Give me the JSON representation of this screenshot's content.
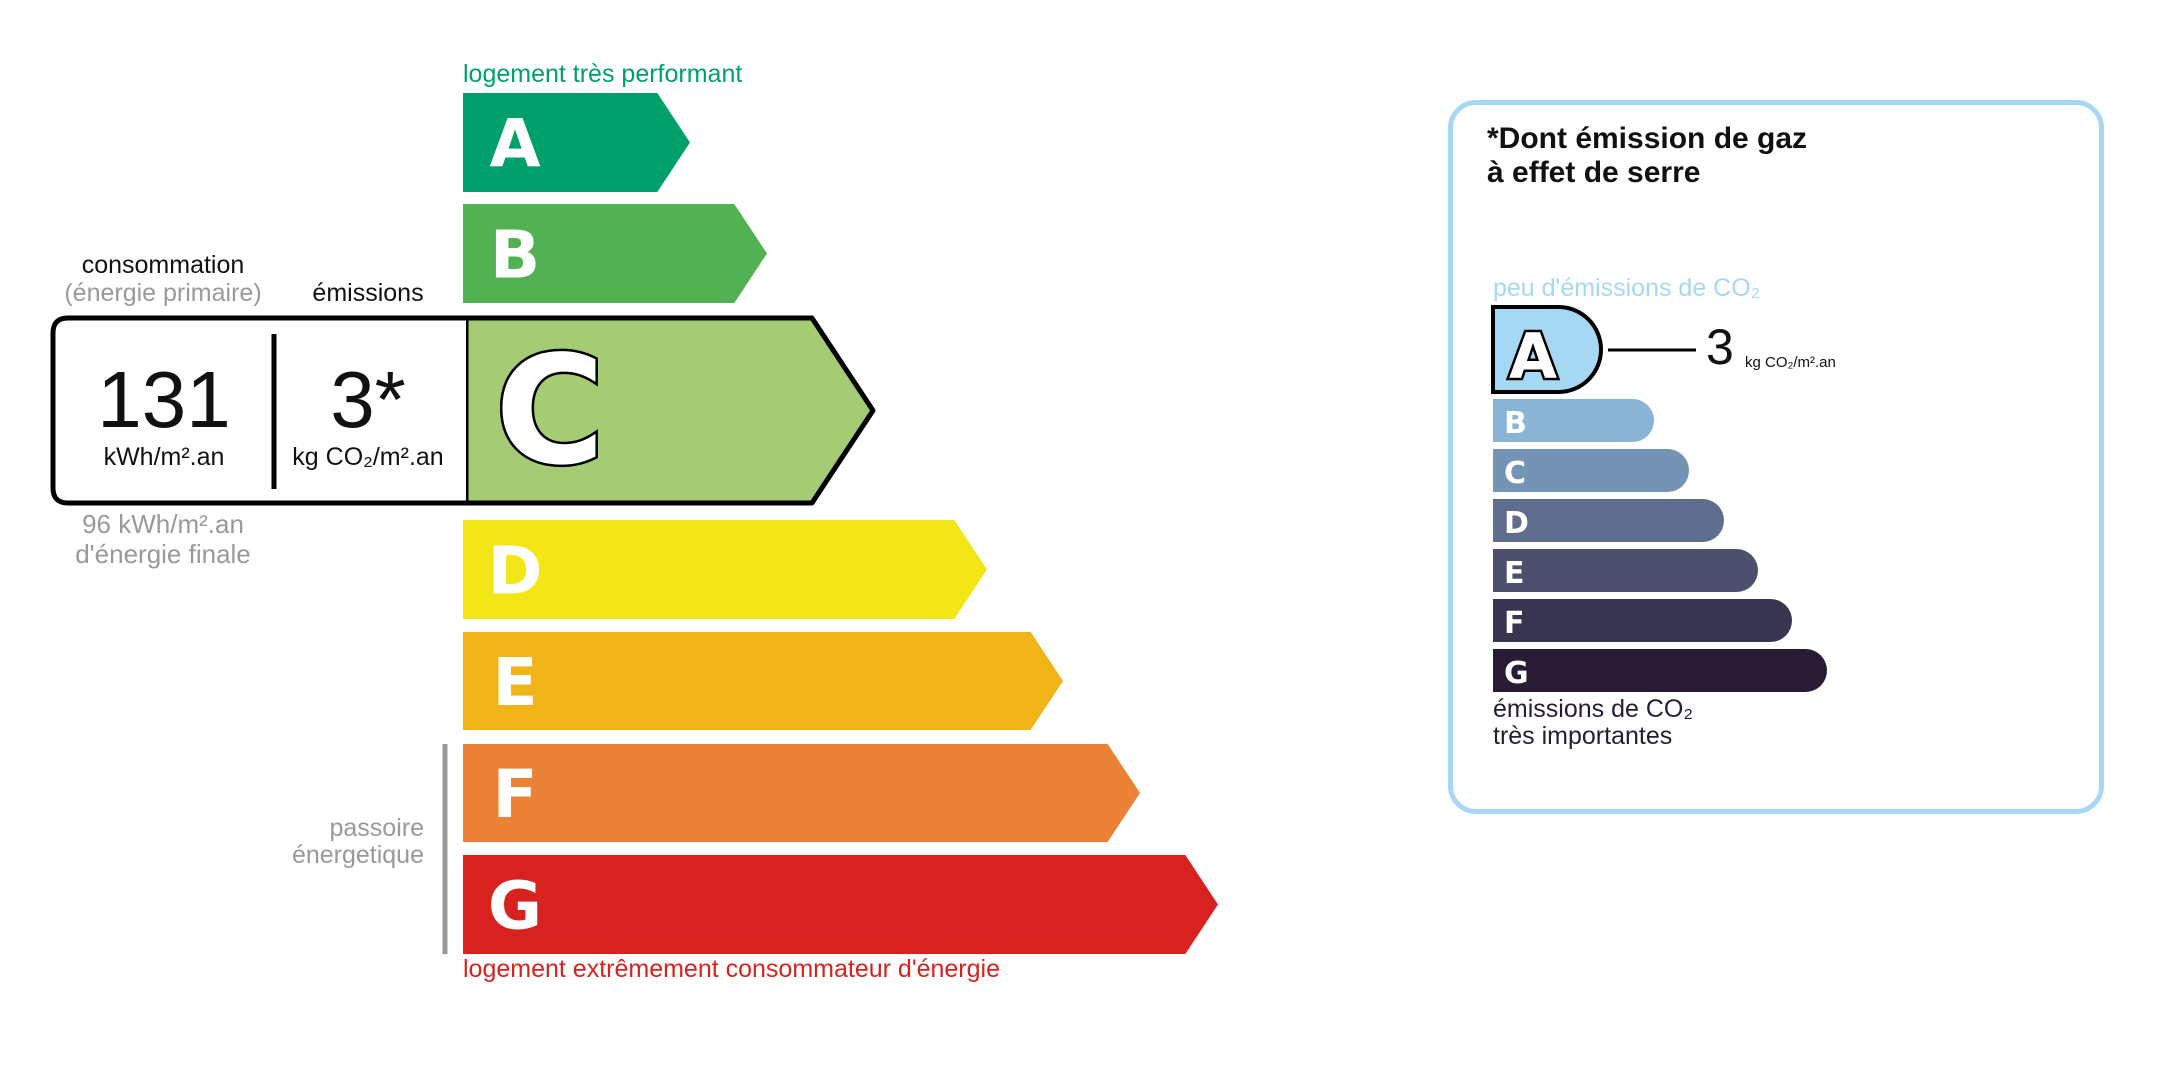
{
  "dpe": {
    "top_label": "logement très performant",
    "bottom_label": "logement extrêmement consommateur d'énergie",
    "passoire_label": [
      "passoire",
      "énergetique"
    ],
    "classes": [
      {
        "letter": "A",
        "color": "#00a06d"
      },
      {
        "letter": "B",
        "color": "#52b153"
      },
      {
        "letter": "C",
        "color": "#a5cc74"
      },
      {
        "letter": "D",
        "color": "#f2e617"
      },
      {
        "letter": "E",
        "color": "#f0b418"
      },
      {
        "letter": "F",
        "color": "#eb8235"
      },
      {
        "letter": "G",
        "color": "#d7221f"
      }
    ],
    "current_class": "C",
    "consumption_header": "consommation",
    "consumption_subheader": "(énergie primaire)",
    "emissions_header": "émissions",
    "consumption_value": "131",
    "consumption_unit": "kWh/m².an",
    "emissions_value": "3*",
    "emissions_unit": "kg CO₂/m².an",
    "final_energy_value": "96 kWh/m².an",
    "final_energy_label": "d'énergie finale"
  },
  "ges": {
    "title_line1": "*Dont émission de gaz",
    "title_line2": "à effet de serre",
    "top_label": "peu d'émissions de CO₂",
    "bottom_label_line1": "émissions de CO₂",
    "bottom_label_line2": "très importantes",
    "current_class": "A",
    "value": "3",
    "unit": "kg CO₂/m².an",
    "border_color": "#a6d8f4",
    "classes": [
      {
        "letter": "A",
        "color": "#a6d8f4"
      },
      {
        "letter": "B",
        "color": "#8ab4d6"
      },
      {
        "letter": "C",
        "color": "#7594b5"
      },
      {
        "letter": "D",
        "color": "#5f6d8f"
      },
      {
        "letter": "E",
        "color": "#4c4f6e"
      },
      {
        "letter": "F",
        "color": "#383551"
      },
      {
        "letter": "G",
        "color": "#2a1b35"
      }
    ]
  }
}
